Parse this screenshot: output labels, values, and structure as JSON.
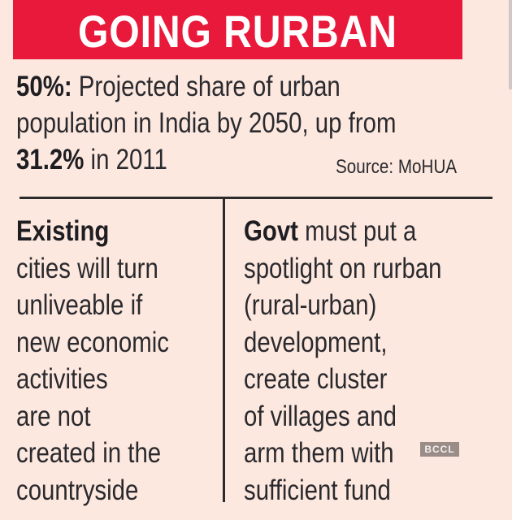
{
  "banner": {
    "title": "GOING RURBAN",
    "color": "#e8193a"
  },
  "stat": {
    "line1_bold": "50%:",
    "line1_rest": " Projected share of urban",
    "line2": "population in India by 2050, up from",
    "line3_bold": "31.2%",
    "line3_rest": " in 2011",
    "source": "Source: MoHUA"
  },
  "left_column": {
    "lead_bold": "Existing",
    "lines": [
      "cities will turn",
      "unliveable if",
      "new economic",
      "activities",
      "are not",
      "created in the",
      "countryside"
    ]
  },
  "right_column": {
    "lead_bold": "Govt",
    "lead_rest": " must put a",
    "lines": [
      "spotlight on rurban",
      "(rural-urban)",
      "development,",
      "create cluster",
      "of villages and",
      "arm them with",
      "sufficient fund"
    ]
  },
  "watermark": "BCCL"
}
